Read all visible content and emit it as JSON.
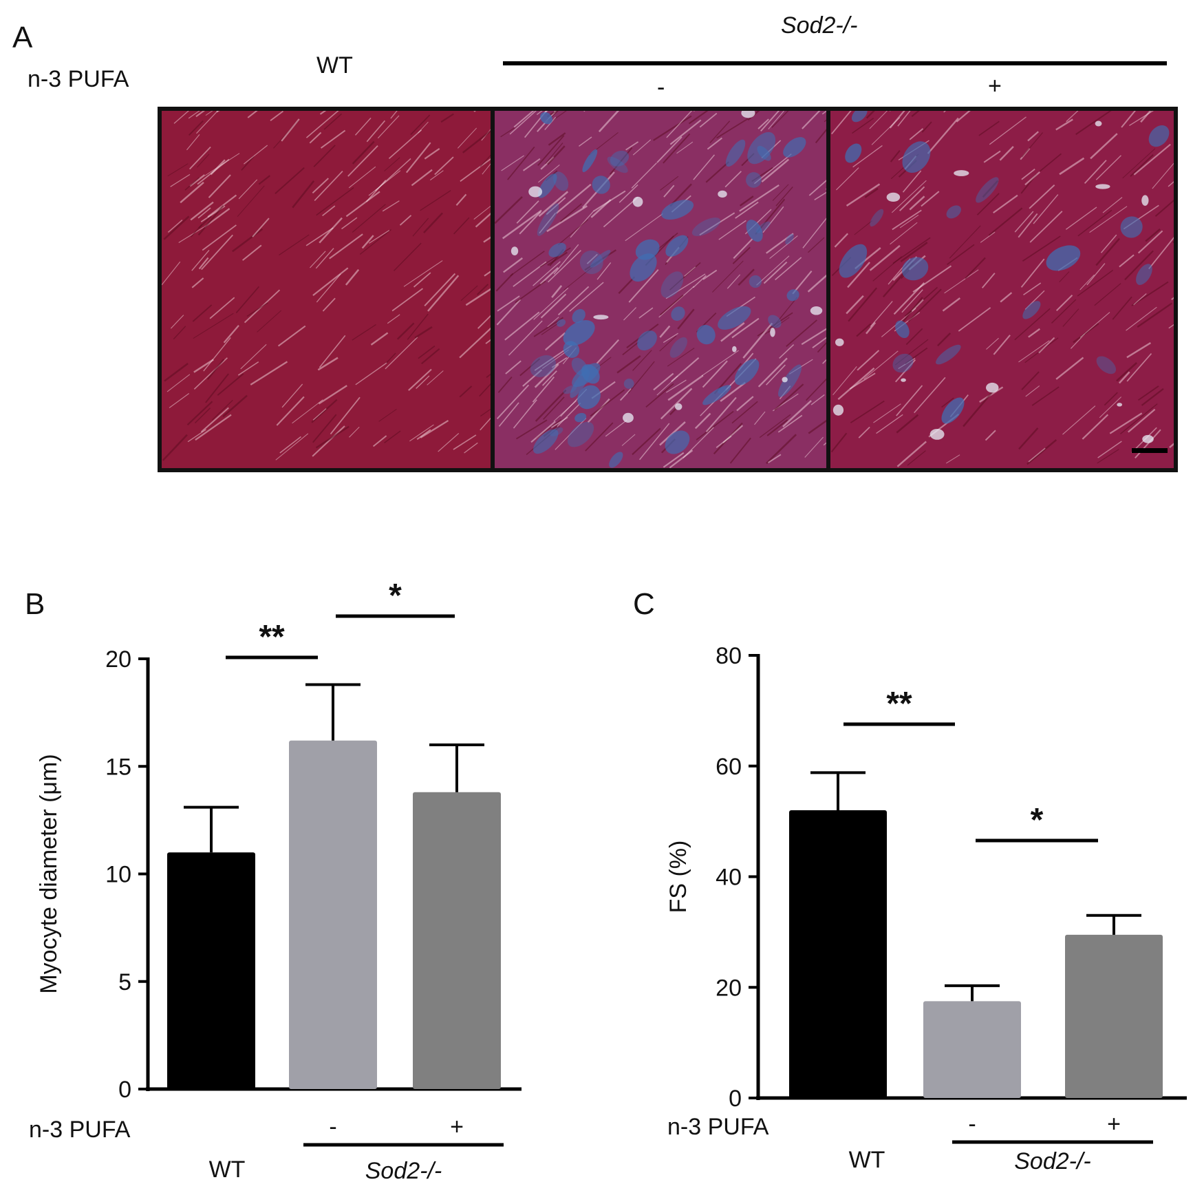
{
  "panel_a": {
    "letter": "A",
    "row_label": "n-3 PUFA",
    "wt_label": "WT",
    "group_label": "Sod2-/-",
    "minus": "-",
    "plus": "+",
    "tiles": [
      {
        "name": "wt-tile",
        "base": "#8e1a3a",
        "fibrosis": "none"
      },
      {
        "name": "sod2-minus-tile",
        "base": "#8a2f63",
        "fibrosis": "heavy"
      },
      {
        "name": "sod2-plus-tile",
        "base": "#8d1d47",
        "fibrosis": "mild"
      }
    ],
    "fibrosis_color": "#3f6fb4",
    "scale_bar": true
  },
  "chart_data": [
    {
      "panel": "B",
      "type": "bar",
      "categories": [
        "WT",
        "Sod2-/- -",
        "Sod2-/- +"
      ],
      "values": [
        11.0,
        16.2,
        13.8
      ],
      "errors": [
        2.1,
        2.6,
        2.2
      ],
      "colors": [
        "#000000",
        "#a0a0a8",
        "#808080"
      ],
      "ylabel": "Myocyte diameter (μm)",
      "ylim": [
        0,
        20
      ],
      "yticks": [
        "0",
        "5",
        "10",
        "15",
        "20"
      ],
      "row_label": "n-3 PUFA",
      "minus": "-",
      "plus": "+",
      "wt_label": "WT",
      "group_label": "Sod2-/-",
      "significance": [
        {
          "from": 0,
          "to": 1,
          "label": "**"
        },
        {
          "from": 1,
          "to": 2,
          "label": "*"
        }
      ]
    },
    {
      "panel": "C",
      "type": "bar",
      "categories": [
        "WT",
        "Sod2-/- -",
        "Sod2-/- +"
      ],
      "values": [
        52,
        17.5,
        29.5
      ],
      "errors": [
        6.8,
        2.8,
        3.5
      ],
      "colors": [
        "#000000",
        "#a0a0a8",
        "#808080"
      ],
      "ylabel": "FS (%)",
      "ylim": [
        0,
        80
      ],
      "yticks": [
        "0",
        "20",
        "40",
        "60",
        "80"
      ],
      "row_label": "n-3 PUFA",
      "minus": "-",
      "plus": "+",
      "wt_label": "WT",
      "group_label": "Sod2-/-",
      "significance": [
        {
          "from": 0,
          "to": 1,
          "label": "**"
        },
        {
          "from": 1,
          "to": 2,
          "label": "*"
        }
      ]
    }
  ]
}
